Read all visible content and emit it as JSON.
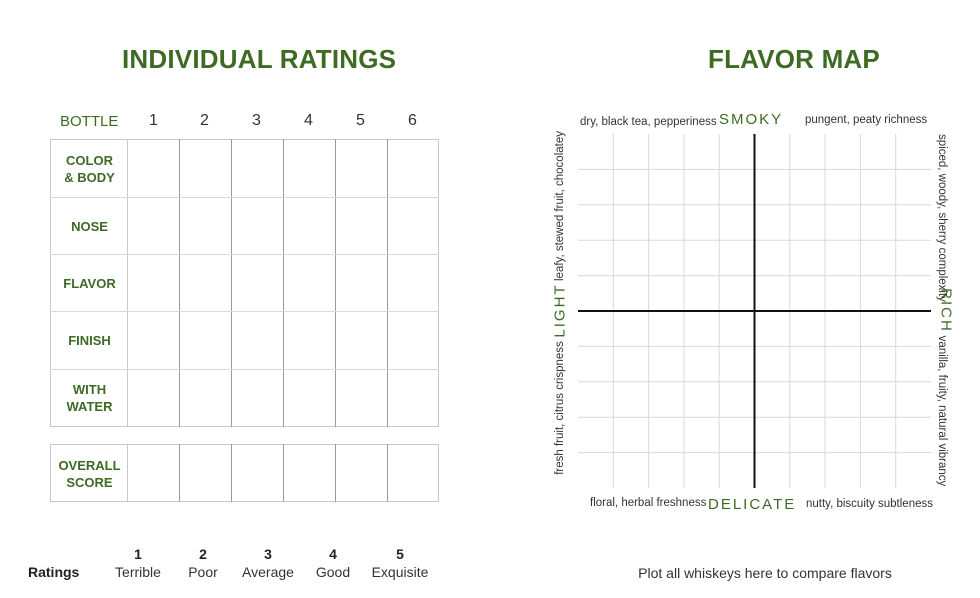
{
  "ratings_section": {
    "title": "INDIVIDUAL RATINGS",
    "bottle_header": "BOTTLE",
    "bottle_numbers": [
      "1",
      "2",
      "3",
      "4",
      "5",
      "6"
    ],
    "rows": [
      "COLOR\n& BODY",
      "NOSE",
      "FLAVOR",
      "FINISH",
      "WITH\nWATER"
    ],
    "overall_row": "OVERALL\nSCORE"
  },
  "legend": {
    "label": "Ratings",
    "scale": [
      {
        "num": "1",
        "text": "Terrible"
      },
      {
        "num": "2",
        "text": "Poor"
      },
      {
        "num": "3",
        "text": "Average"
      },
      {
        "num": "4",
        "text": "Good"
      },
      {
        "num": "5",
        "text": "Exquisite"
      }
    ]
  },
  "flavor_map": {
    "title": "FLAVOR MAP",
    "axis_top": "SMOKY",
    "axis_bottom": "DELICATE",
    "axis_left": "LIGHT",
    "axis_right": "RICH",
    "top_left": "dry, black tea, pepperiness",
    "top_right": "pungent, peaty richness",
    "bottom_left": "floral, herbal freshness",
    "bottom_right": "nutty, biscuity subtleness",
    "left_top": "leafy, stewed fruit, chocolatey",
    "left_bottom": "fresh fruit, citrus crispness",
    "right_top": "spiced, woody, sherry complexity",
    "right_bottom": "vanilla, fruity, natural vibrancy",
    "caption": "Plot all whiskeys here to compare flavors"
  },
  "colors": {
    "accent": "#3e6b24",
    "grid": "#d8d8d8",
    "axis": "#111111"
  }
}
